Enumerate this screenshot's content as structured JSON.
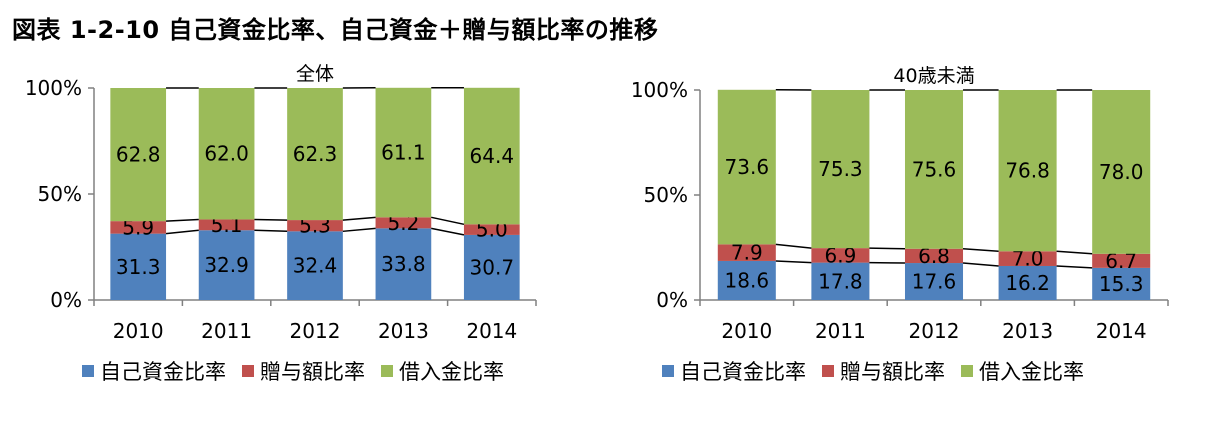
{
  "figure_title": "図表 1-2-10 自己資金比率、自己資金＋贈与額比率の推移",
  "colors": {
    "self_funds": "#4f81bd",
    "gift": "#c0504d",
    "loan": "#9bbb59"
  },
  "legend": [
    "自己資金比率",
    "贈与額比率",
    "借入金比率"
  ],
  "chart_data": [
    {
      "type": "bar",
      "stacked": true,
      "title": "全体",
      "categories": [
        "2010",
        "2011",
        "2012",
        "2013",
        "2014"
      ],
      "y_ticks": [
        "0%",
        "50%",
        "100%"
      ],
      "ylim": [
        0,
        100
      ],
      "series": [
        {
          "name": "自己資金比率",
          "values": [
            31.3,
            32.9,
            32.4,
            33.8,
            30.7
          ]
        },
        {
          "name": "贈与額比率",
          "values": [
            5.9,
            5.1,
            5.3,
            5.2,
            5.0
          ]
        },
        {
          "name": "借入金比率",
          "values": [
            62.8,
            62.0,
            62.3,
            61.1,
            64.4
          ]
        }
      ],
      "legend_position": "bottom"
    },
    {
      "type": "bar",
      "stacked": true,
      "title": "40歳未満",
      "categories": [
        "2010",
        "2011",
        "2012",
        "2013",
        "2014"
      ],
      "y_ticks": [
        "0%",
        "50%",
        "100%"
      ],
      "ylim": [
        0,
        100
      ],
      "series": [
        {
          "name": "自己資金比率",
          "values": [
            18.6,
            17.8,
            17.6,
            16.2,
            15.3
          ]
        },
        {
          "name": "贈与額比率",
          "values": [
            7.9,
            6.9,
            6.8,
            7.0,
            6.7
          ]
        },
        {
          "name": "借入金比率",
          "values": [
            73.6,
            75.3,
            75.6,
            76.8,
            78.0
          ]
        }
      ],
      "legend_position": "bottom"
    }
  ]
}
